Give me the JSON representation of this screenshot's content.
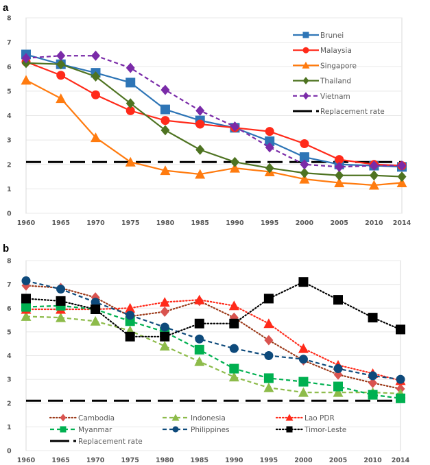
{
  "chart_data": [
    {
      "panel": "a",
      "type": "line",
      "title": "",
      "xlabel": "",
      "ylabel": "",
      "x": [
        1960,
        1965,
        1970,
        1975,
        1980,
        1985,
        1990,
        1995,
        2000,
        2005,
        2010,
        2014
      ],
      "x_tick_labels": [
        "1960",
        "1965",
        "1970",
        "1975",
        "1980",
        "1985",
        "1990",
        "1995",
        "2000",
        "2005",
        "2010",
        "2014"
      ],
      "ylim": [
        0,
        8
      ],
      "y_ticks": [
        0,
        1,
        2,
        3,
        4,
        5,
        6,
        7,
        8
      ],
      "grid": true,
      "legend_position": "top-right",
      "reference_line": {
        "name": "Replacement rate",
        "value": 2.1,
        "color": "#000000",
        "style": "dashed"
      },
      "series": [
        {
          "name": "Brunei",
          "color": "#2E75B6",
          "marker": "square",
          "style": "solid",
          "values": [
            6.5,
            6.1,
            5.75,
            5.35,
            4.25,
            3.8,
            3.5,
            2.95,
            2.3,
            2.0,
            1.95,
            1.9
          ]
        },
        {
          "name": "Malaysia",
          "color": "#FF2A1A",
          "marker": "circle",
          "style": "solid",
          "values": [
            6.2,
            5.65,
            4.85,
            4.2,
            3.8,
            3.65,
            3.5,
            3.35,
            2.85,
            2.2,
            2.0,
            1.95
          ]
        },
        {
          "name": "Singapore",
          "color": "#FF7B0F",
          "marker": "triangle",
          "style": "solid",
          "values": [
            5.45,
            4.7,
            3.1,
            2.1,
            1.75,
            1.6,
            1.85,
            1.7,
            1.4,
            1.25,
            1.15,
            1.25
          ]
        },
        {
          "name": "Thailand",
          "color": "#4E7321",
          "marker": "diamond",
          "style": "solid",
          "values": [
            6.15,
            6.1,
            5.6,
            4.5,
            3.4,
            2.6,
            2.1,
            1.85,
            1.65,
            1.55,
            1.55,
            1.5
          ]
        },
        {
          "name": "Vietnam",
          "color": "#7A2BA8",
          "marker": "diamond",
          "style": "dashed",
          "values": [
            6.35,
            6.45,
            6.45,
            5.95,
            5.05,
            4.2,
            3.55,
            2.7,
            2.0,
            1.9,
            1.95,
            1.95
          ]
        }
      ]
    },
    {
      "panel": "b",
      "type": "line",
      "title": "",
      "xlabel": "",
      "ylabel": "",
      "x": [
        1960,
        1965,
        1970,
        1975,
        1980,
        1985,
        1990,
        1995,
        2000,
        2005,
        2010,
        2014
      ],
      "x_tick_labels": [
        "1960",
        "1965",
        "1970",
        "1975",
        "1980",
        "1985",
        "1990",
        "1995",
        "2000",
        "2005",
        "2010",
        "2014"
      ],
      "ylim": [
        0,
        8
      ],
      "y_ticks": [
        0,
        1,
        2,
        3,
        4,
        5,
        6,
        7,
        8
      ],
      "grid": true,
      "legend_position": "bottom",
      "reference_line": {
        "name": "Replacement rate",
        "value": 2.1,
        "color": "#000000",
        "style": "dashed"
      },
      "series": [
        {
          "name": "Cambodia",
          "color": "#D9534F",
          "line_color": "#9C3A1A",
          "marker": "diamond",
          "style": "dotted",
          "values": [
            6.95,
            6.85,
            6.45,
            5.65,
            5.85,
            6.3,
            5.6,
            4.65,
            3.8,
            3.2,
            2.85,
            2.6
          ]
        },
        {
          "name": "Indonesia",
          "color": "#8DBB4A",
          "line_color": "#8DBB4A",
          "marker": "triangle",
          "style": "dashed",
          "values": [
            5.65,
            5.6,
            5.45,
            5.05,
            4.4,
            3.75,
            3.1,
            2.65,
            2.45,
            2.45,
            2.45,
            2.4
          ]
        },
        {
          "name": "Lao PDR",
          "color": "#FF2A1A",
          "line_color": "#FF2A1A",
          "marker": "triangle",
          "style": "dotted",
          "values": [
            5.95,
            5.95,
            5.95,
            6.0,
            6.25,
            6.35,
            6.1,
            5.35,
            4.3,
            3.6,
            3.25,
            2.95
          ]
        },
        {
          "name": "Myanmar",
          "color": "#00B050",
          "line_color": "#00B050",
          "marker": "square",
          "style": "dashed",
          "values": [
            6.05,
            6.1,
            5.95,
            5.45,
            5.0,
            4.25,
            3.45,
            3.05,
            2.9,
            2.7,
            2.35,
            2.2
          ]
        },
        {
          "name": "Philippines",
          "color": "#0E4A7B",
          "line_color": "#0E4A7B",
          "marker": "circle",
          "style": "dashed",
          "values": [
            7.15,
            6.8,
            6.25,
            5.7,
            5.2,
            4.7,
            4.3,
            4.0,
            3.85,
            3.45,
            3.15,
            3.0
          ]
        },
        {
          "name": "Timor-Leste",
          "color": "#000000",
          "line_color": "#000000",
          "marker": "square",
          "style": "dotted",
          "values": [
            6.4,
            6.3,
            5.95,
            4.8,
            4.8,
            5.35,
            5.35,
            6.4,
            7.1,
            6.35,
            5.6,
            5.1
          ]
        }
      ]
    }
  ]
}
